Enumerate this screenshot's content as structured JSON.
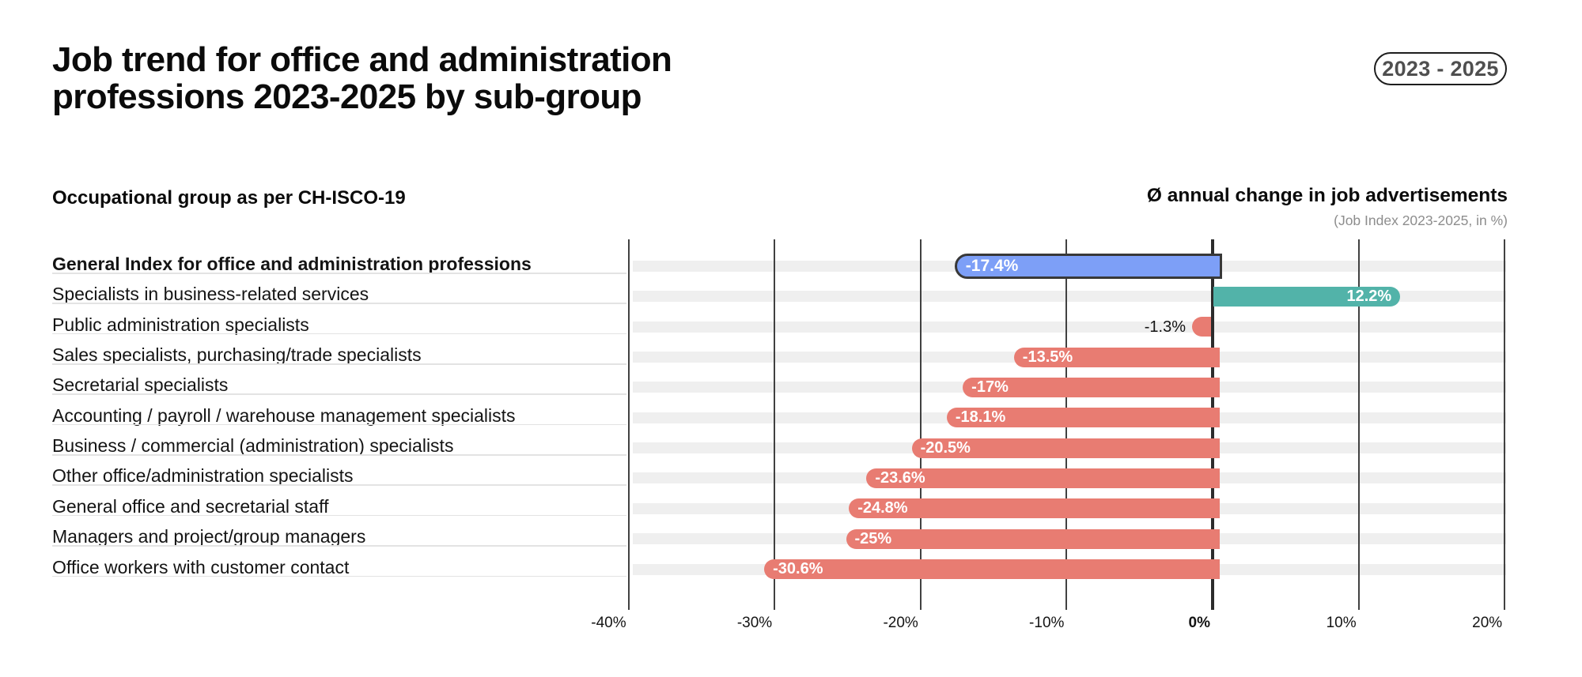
{
  "header": {
    "title_lines": [
      "Job trend for office and administration",
      "professions 2023-2025 by sub-group"
    ],
    "badge": "2023 - 2025"
  },
  "columns": {
    "left_heading": "Occupational group as per CH-ISCO-19",
    "right_heading": "Ø annual change in job advertisements",
    "right_subheading": "(Job Index 2023-2025, in %)"
  },
  "chart_data": {
    "type": "bar",
    "orientation": "horizontal",
    "unit": "percent",
    "xlabel": "Ø annual change in job advertisements (Job Index 2023-2025, in %)",
    "ylabel": "Occupational group as per CH-ISCO-19",
    "xlim": [
      -40,
      20
    ],
    "grid": "vertical",
    "ticks": [
      {
        "label": "-40%",
        "value": -40
      },
      {
        "label": "-30%",
        "value": -30
      },
      {
        "label": "-20%",
        "value": -20
      },
      {
        "label": "-10%",
        "value": -10
      },
      {
        "label": "0%",
        "value": 0
      },
      {
        "label": "10%",
        "value": 10
      },
      {
        "label": "20%",
        "value": 20
      }
    ],
    "rows": [
      {
        "label": "General Index for office and administration professions",
        "value": -17.4,
        "display": "-17.4%",
        "color_role": "index",
        "emphasis": true
      },
      {
        "label": "Specialists in business-related services",
        "value": 12.2,
        "display": "12.2%",
        "color_role": "positive",
        "emphasis": false
      },
      {
        "label": "Public administration specialists",
        "value": -1.3,
        "display": "-1.3%",
        "color_role": "negative",
        "emphasis": false
      },
      {
        "label": "Sales specialists, purchasing/trade specialists",
        "value": -13.5,
        "display": "-13.5%",
        "color_role": "negative",
        "emphasis": false
      },
      {
        "label": "Secretarial specialists",
        "value": -17,
        "display": "-17%",
        "color_role": "negative",
        "emphasis": false
      },
      {
        "label": "Accounting / payroll / warehouse management specialists",
        "value": -18.1,
        "display": "-18.1%",
        "color_role": "negative",
        "emphasis": false
      },
      {
        "label": "Business / commercial (administration) specialists",
        "value": -20.5,
        "display": "-20.5%",
        "color_role": "negative",
        "emphasis": false
      },
      {
        "label": "Other office/administration specialists",
        "value": -23.6,
        "display": "-23.6%",
        "color_role": "negative",
        "emphasis": false
      },
      {
        "label": "General office and secretarial staff",
        "value": -24.8,
        "display": "-24.8%",
        "color_role": "negative",
        "emphasis": false
      },
      {
        "label": "Managers and project/group managers",
        "value": -25,
        "display": "-25%",
        "color_role": "negative",
        "emphasis": false
      },
      {
        "label": "Office workers with customer contact",
        "value": -30.6,
        "display": "-30.6%",
        "color_role": "negative",
        "emphasis": false
      }
    ],
    "colors": {
      "index": "#7d9ff7",
      "index_border": "#383838",
      "positive": "#52b3a9",
      "negative": "#e87c72",
      "stripe": "#efefef",
      "gridline": "#414141",
      "zero_line": "#2c2c2c"
    }
  }
}
